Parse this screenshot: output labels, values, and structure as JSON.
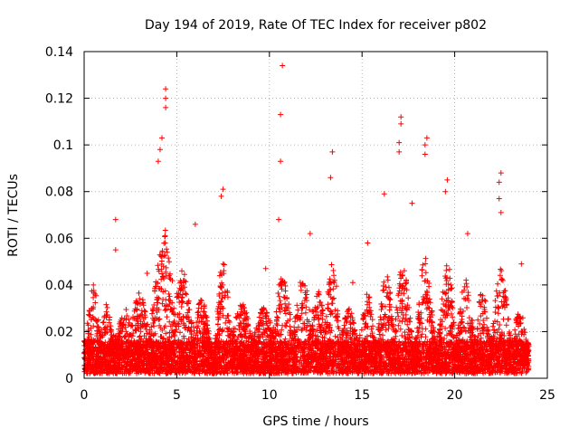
{
  "chart_data": {
    "type": "scatter",
    "title": "Day 194 of 2019, Rate Of TEC Index for receiver p802",
    "xlabel": "GPS time / hours",
    "ylabel": "ROTI / TECUs",
    "xlim": [
      0,
      25
    ],
    "ylim": [
      0,
      0.14
    ],
    "xticks": [
      0,
      5,
      10,
      15,
      20,
      25
    ],
    "xtick_labels": [
      "0",
      "5",
      "10",
      "15",
      "20",
      "25"
    ],
    "yticks": [
      0,
      0.02,
      0.04,
      0.06,
      0.08,
      0.1,
      0.12,
      0.14
    ],
    "ytick_labels": [
      "0",
      "0.02",
      "0.04",
      "0.06",
      "0.08",
      "0.1",
      "0.12",
      "0.14"
    ],
    "grid": true,
    "marker": "+",
    "series_color": "#ff0000",
    "x_data_range": [
      0,
      24
    ],
    "notable_points": [
      {
        "x": 4.4,
        "y": 0.124
      },
      {
        "x": 4.4,
        "y": 0.12
      },
      {
        "x": 4.4,
        "y": 0.116
      },
      {
        "x": 4.2,
        "y": 0.103
      },
      {
        "x": 4.1,
        "y": 0.098
      },
      {
        "x": 4.0,
        "y": 0.093
      },
      {
        "x": 10.7,
        "y": 0.134
      },
      {
        "x": 10.6,
        "y": 0.113
      },
      {
        "x": 10.6,
        "y": 0.093
      },
      {
        "x": 10.5,
        "y": 0.068
      },
      {
        "x": 13.4,
        "y": 0.097
      },
      {
        "x": 13.3,
        "y": 0.086
      },
      {
        "x": 17.1,
        "y": 0.112
      },
      {
        "x": 17.1,
        "y": 0.109
      },
      {
        "x": 17.0,
        "y": 0.101
      },
      {
        "x": 17.0,
        "y": 0.097
      },
      {
        "x": 18.5,
        "y": 0.103
      },
      {
        "x": 18.4,
        "y": 0.1
      },
      {
        "x": 18.4,
        "y": 0.096
      },
      {
        "x": 19.6,
        "y": 0.085
      },
      {
        "x": 19.5,
        "y": 0.08
      },
      {
        "x": 22.5,
        "y": 0.088
      },
      {
        "x": 22.4,
        "y": 0.084
      },
      {
        "x": 22.4,
        "y": 0.077
      },
      {
        "x": 22.5,
        "y": 0.071
      },
      {
        "x": 7.5,
        "y": 0.081
      },
      {
        "x": 7.4,
        "y": 0.078
      },
      {
        "x": 1.7,
        "y": 0.068
      },
      {
        "x": 1.7,
        "y": 0.055
      },
      {
        "x": 16.2,
        "y": 0.079
      },
      {
        "x": 20.7,
        "y": 0.062
      },
      {
        "x": 9.8,
        "y": 0.047
      },
      {
        "x": 6.0,
        "y": 0.066
      },
      {
        "x": 12.2,
        "y": 0.062
      },
      {
        "x": 15.3,
        "y": 0.058
      },
      {
        "x": 17.7,
        "y": 0.075
      },
      {
        "x": 23.6,
        "y": 0.049
      },
      {
        "x": 0.5,
        "y": 0.04
      },
      {
        "x": 3.4,
        "y": 0.045
      },
      {
        "x": 14.5,
        "y": 0.041
      }
    ],
    "activity_peaks": [
      {
        "x": 0.2,
        "w": 0.3,
        "h": 0.022
      },
      {
        "x": 0.5,
        "w": 0.4,
        "h": 0.038
      },
      {
        "x": 1.2,
        "w": 0.4,
        "h": 0.03
      },
      {
        "x": 2.2,
        "w": 0.6,
        "h": 0.028
      },
      {
        "x": 3.0,
        "w": 0.6,
        "h": 0.035
      },
      {
        "x": 4.3,
        "w": 0.7,
        "h": 0.06
      },
      {
        "x": 5.3,
        "w": 0.6,
        "h": 0.045
      },
      {
        "x": 6.3,
        "w": 0.6,
        "h": 0.032
      },
      {
        "x": 7.5,
        "w": 0.4,
        "h": 0.05
      },
      {
        "x": 8.5,
        "w": 0.7,
        "h": 0.03
      },
      {
        "x": 9.7,
        "w": 0.7,
        "h": 0.028
      },
      {
        "x": 10.7,
        "w": 0.6,
        "h": 0.042
      },
      {
        "x": 11.8,
        "w": 0.6,
        "h": 0.04
      },
      {
        "x": 12.6,
        "w": 0.6,
        "h": 0.035
      },
      {
        "x": 13.4,
        "w": 0.4,
        "h": 0.048
      },
      {
        "x": 14.3,
        "w": 0.6,
        "h": 0.028
      },
      {
        "x": 15.3,
        "w": 0.4,
        "h": 0.036
      },
      {
        "x": 16.3,
        "w": 0.5,
        "h": 0.042
      },
      {
        "x": 17.2,
        "w": 0.5,
        "h": 0.045
      },
      {
        "x": 18.4,
        "w": 0.5,
        "h": 0.048
      },
      {
        "x": 19.6,
        "w": 0.5,
        "h": 0.045
      },
      {
        "x": 20.6,
        "w": 0.5,
        "h": 0.04
      },
      {
        "x": 21.5,
        "w": 0.5,
        "h": 0.035
      },
      {
        "x": 22.5,
        "w": 0.5,
        "h": 0.045
      },
      {
        "x": 23.5,
        "w": 0.4,
        "h": 0.03
      }
    ]
  }
}
